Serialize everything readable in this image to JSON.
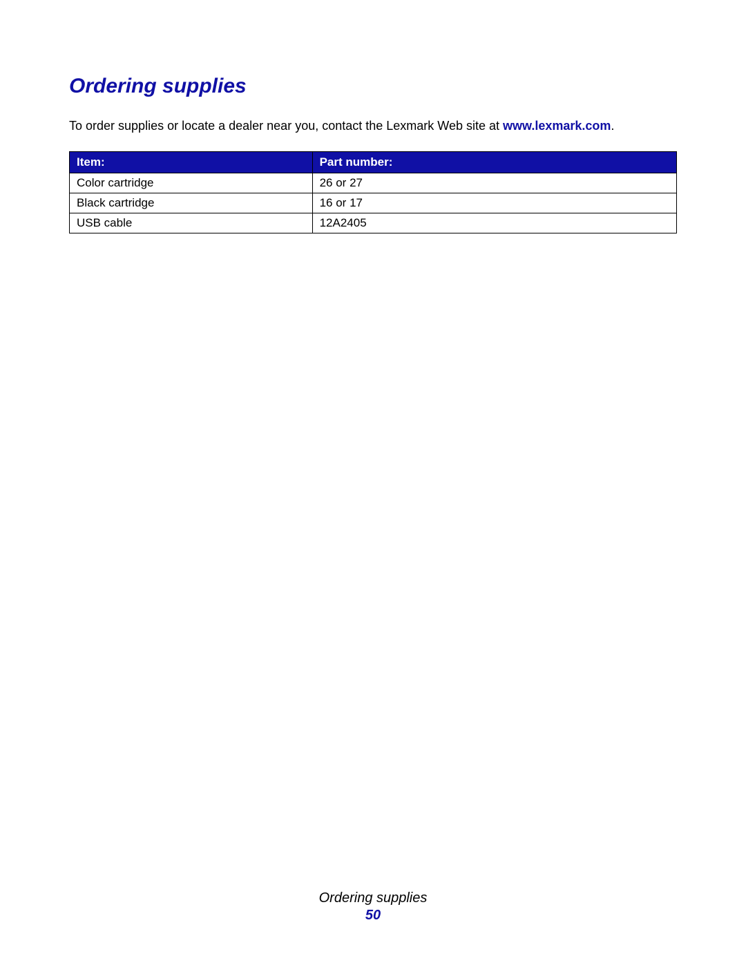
{
  "heading": "Ordering supplies",
  "intro": {
    "text_before_link": "To order supplies or locate a dealer near you, contact the Lexmark Web site at ",
    "link_text": "www.lexmark.com",
    "text_after_link": "."
  },
  "table": {
    "columns": [
      "Item:",
      "Part number:"
    ],
    "rows": [
      [
        "Color cartridge",
        "26 or 27"
      ],
      [
        "Black cartridge",
        "16 or 17"
      ],
      [
        "USB cable",
        "12A2405"
      ]
    ],
    "header_bg_color": "#1010a5",
    "header_text_color": "#ffffff",
    "border_color": "#000000",
    "cell_text_color": "#000000",
    "font_size": 17
  },
  "footer": {
    "title": "Ordering supplies",
    "page_number": "50"
  },
  "colors": {
    "heading_color": "#1010a5",
    "link_color": "#1010a5",
    "body_text": "#000000",
    "background": "#ffffff"
  }
}
